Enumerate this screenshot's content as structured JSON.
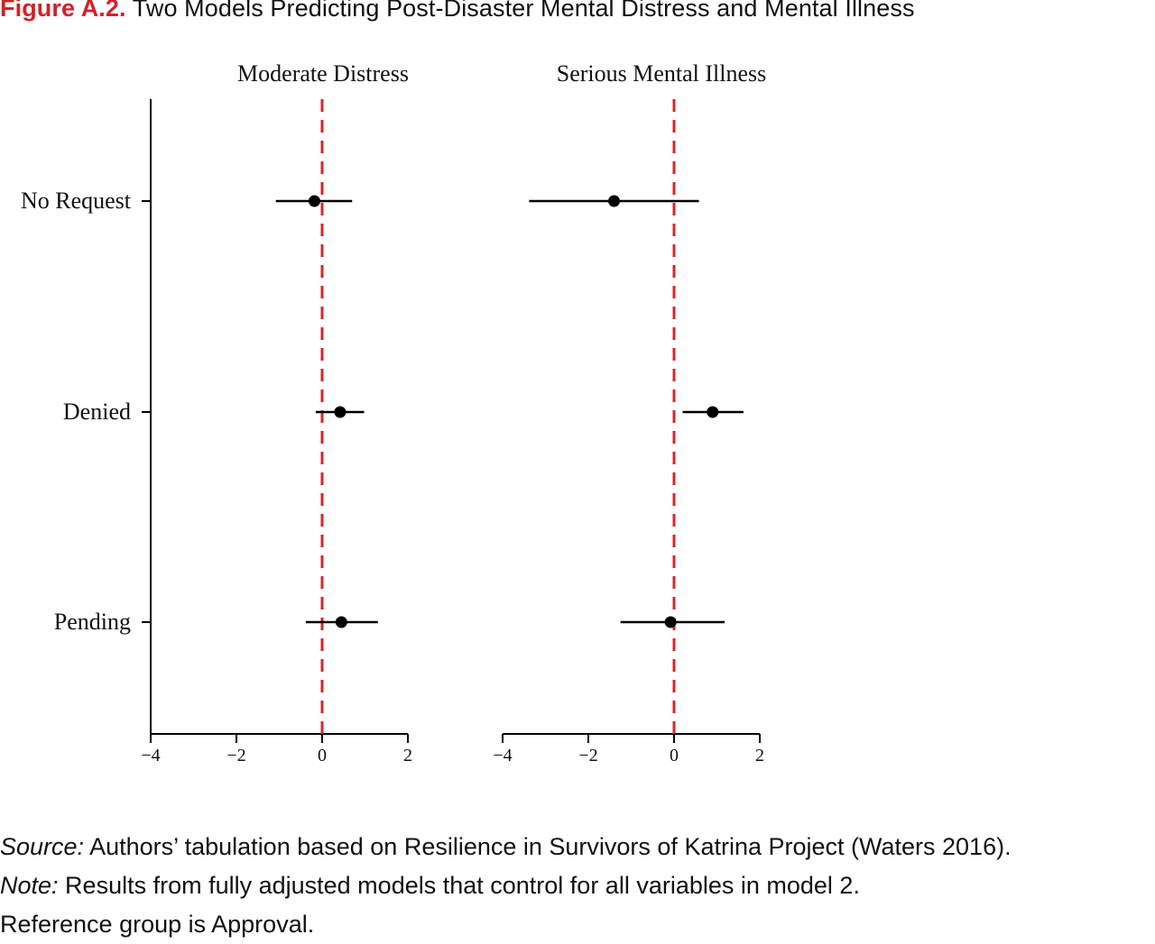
{
  "figure": {
    "label": "Figure A.2.",
    "title": "Two Models Predicting Post-Disaster Mental Distress and Mental Illness"
  },
  "colors": {
    "figure_label": "#d4202a",
    "reference_line": "#d62728",
    "marks": "#000000"
  },
  "chart_data": [
    {
      "type": "scatter",
      "title": "Moderate Distress",
      "xlabel": "",
      "ylabel": "",
      "categories": [
        "No Request",
        "Denied",
        "Pending"
      ],
      "xlim": [
        -4,
        2
      ],
      "xticks": [
        -4,
        -2,
        0,
        2
      ],
      "xtick_labels": [
        "−4",
        "−2",
        "0",
        "2"
      ],
      "reference_line": 0,
      "grid": false,
      "points": [
        {
          "category": "No Request",
          "estimate": -0.18,
          "lower": -1.08,
          "upper": 0.7
        },
        {
          "category": "Denied",
          "estimate": 0.42,
          "lower": -0.15,
          "upper": 0.98
        },
        {
          "category": "Pending",
          "estimate": 0.45,
          "lower": -0.38,
          "upper": 1.3
        }
      ]
    },
    {
      "type": "scatter",
      "title": "Serious Mental Illness",
      "xlabel": "",
      "ylabel": "",
      "categories": [
        "No Request",
        "Denied",
        "Pending"
      ],
      "xlim": [
        -4,
        2
      ],
      "xticks": [
        -4,
        -2,
        0,
        2
      ],
      "xtick_labels": [
        "−4",
        "−2",
        "0",
        "2"
      ],
      "reference_line": 0,
      "grid": false,
      "points": [
        {
          "category": "No Request",
          "estimate": -1.4,
          "lower": -3.38,
          "upper": 0.58
        },
        {
          "category": "Denied",
          "estimate": 0.9,
          "lower": 0.2,
          "upper": 1.62
        },
        {
          "category": "Pending",
          "estimate": -0.08,
          "lower": -1.25,
          "upper": 1.18
        }
      ]
    }
  ],
  "footnotes": {
    "source_label": "Source:",
    "source_text": " Authors’ tabulation based on Resilience in Survivors of Katrina Project (Waters 2016).",
    "note_label": "Note:",
    "note_text": " Results from fully adjusted models that control for all variables in model 2.",
    "note_line2": "Reference group is Approval."
  }
}
